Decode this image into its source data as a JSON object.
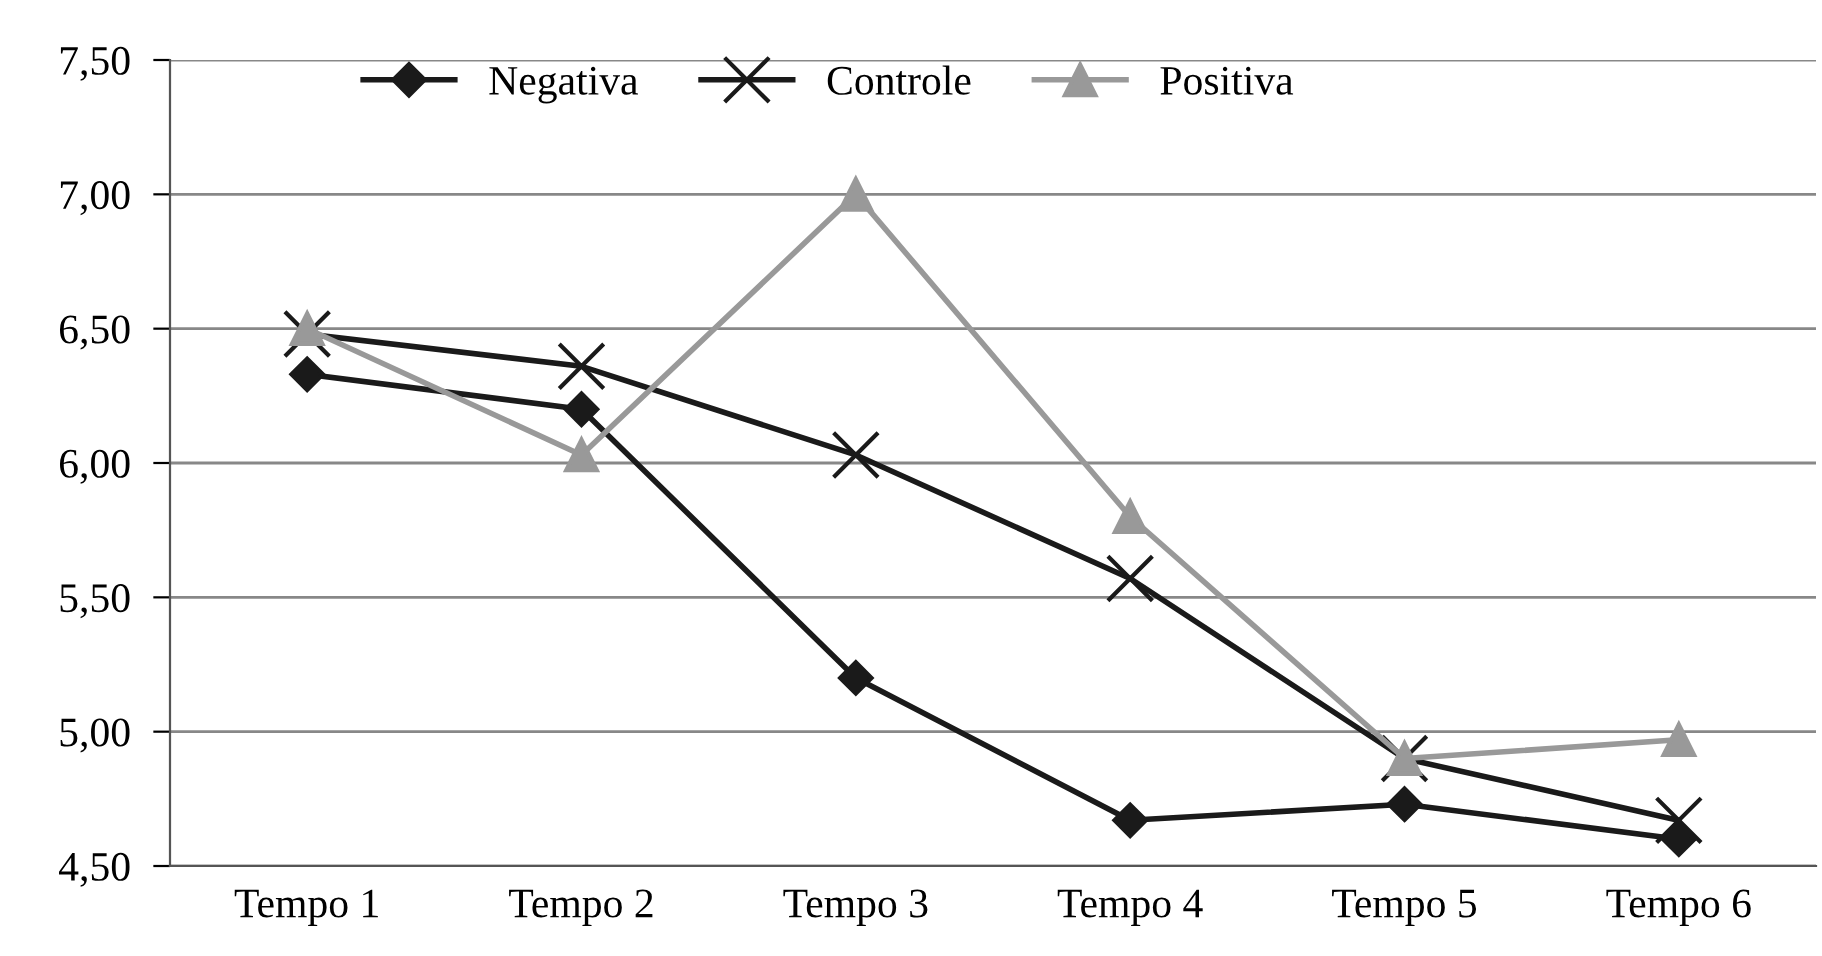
{
  "chart_data": {
    "type": "line",
    "categories": [
      "Tempo 1",
      "Tempo 2",
      "Tempo 3",
      "Tempo 4",
      "Tempo 5",
      "Tempo 6"
    ],
    "series": [
      {
        "name": "Negativa",
        "color": "#1a1a1a",
        "marker": "diamond",
        "values": [
          6.33,
          6.2,
          5.2,
          4.67,
          4.73,
          4.6
        ]
      },
      {
        "name": "Controle",
        "color": "#1a1a1a",
        "marker": "cross",
        "values": [
          6.48,
          6.36,
          6.03,
          5.57,
          4.9,
          4.67
        ]
      },
      {
        "name": "Positiva",
        "color": "#999999",
        "marker": "triangle",
        "values": [
          6.5,
          6.03,
          7.0,
          5.8,
          4.9,
          4.97
        ]
      }
    ],
    "ylim": [
      4.5,
      7.5
    ],
    "yticks": [
      {
        "value": 4.5,
        "label": "4,50"
      },
      {
        "value": 5.0,
        "label": "5,00"
      },
      {
        "value": 5.5,
        "label": "5,50"
      },
      {
        "value": 6.0,
        "label": "6,00"
      },
      {
        "value": 6.5,
        "label": "6,50"
      },
      {
        "value": 7.0,
        "label": "7,00"
      },
      {
        "value": 7.5,
        "label": "7,50"
      }
    ],
    "grid": "y",
    "legend": "top",
    "line_style": "solid"
  }
}
